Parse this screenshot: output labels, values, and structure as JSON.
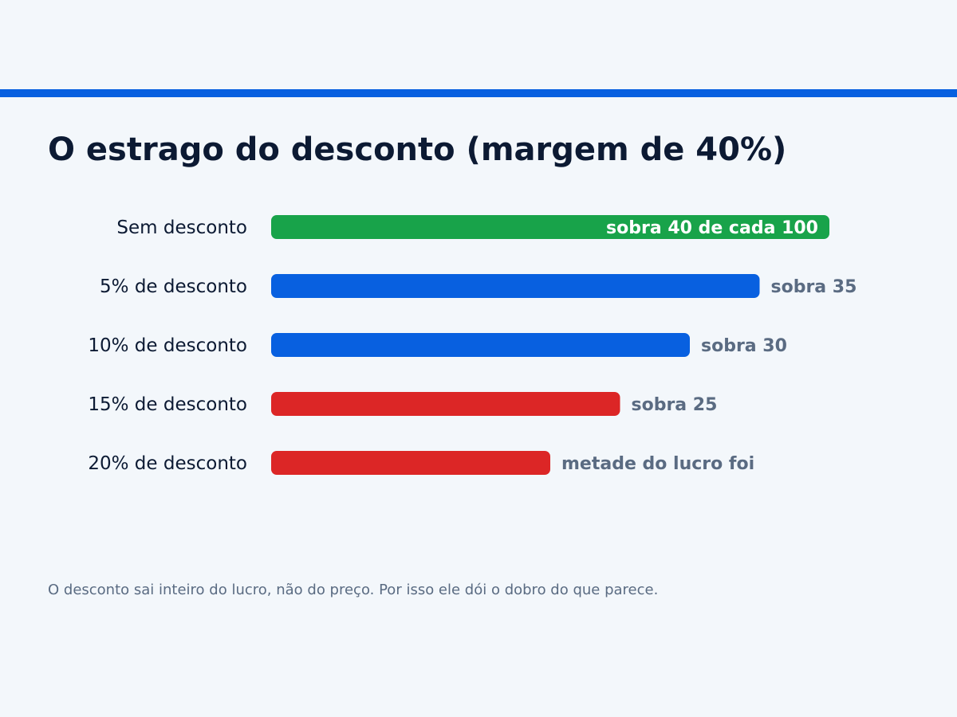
{
  "colors": {
    "accent": "#0860e0",
    "positive": "#18a34a",
    "neutral": "#0860e0",
    "negative": "#dc2626",
    "title": "#0c1a33",
    "muted": "#5a6b82",
    "background": "#f3f7fb"
  },
  "chart_data": {
    "type": "bar",
    "orientation": "horizontal",
    "title": "O estrago do desconto (margem de 40%)",
    "xlabel": "",
    "ylabel": "",
    "xlim": [
      0,
      40
    ],
    "grid": false,
    "legend": "none",
    "categories": [
      "Sem desconto",
      "5% de desconto",
      "10% de desconto",
      "15% de desconto",
      "20% de desconto"
    ],
    "values": [
      40,
      35,
      30,
      25,
      20
    ],
    "data_labels": [
      "sobra 40 de cada 100",
      "sobra 35",
      "sobra 30",
      "sobra 25",
      "metade do lucro foi"
    ],
    "bar_colors": [
      "#18a34a",
      "#0860e0",
      "#0860e0",
      "#dc2626",
      "#dc2626"
    ]
  },
  "footnote": "O desconto sai inteiro do lucro, não do preço. Por isso ele dói o dobro do que parece."
}
